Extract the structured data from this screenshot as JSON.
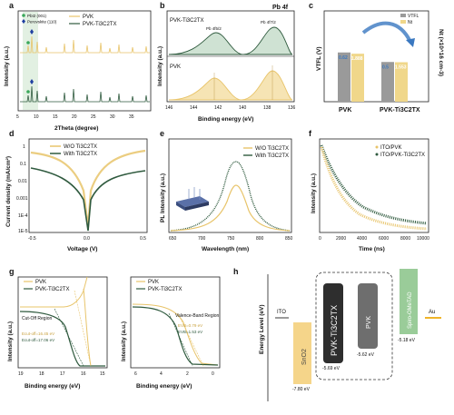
{
  "colors": {
    "pvk": "#e8c46a",
    "pvk_light": "#f0d78a",
    "green": "#2f5a3e",
    "grey": "#9a9a9a",
    "dark": "#2e2e2e",
    "blue": "#3a78c0",
    "light": "#d8d8d8"
  },
  "panels": [
    "a",
    "b",
    "c",
    "d",
    "e",
    "f",
    "g",
    "h"
  ],
  "a": {
    "xlabel": "2Theta (degree)",
    "ylabel": "Intensity (a.u.)",
    "xticks": [
      "5",
      "10",
      "15",
      "20",
      "25",
      "30",
      "35"
    ],
    "legend": [
      "PVK",
      "PVK-Ti3C2TX"
    ],
    "markers": [
      "PbI2 (001)",
      "Perovskite (110)"
    ]
  },
  "b": {
    "title": "Pb 4f",
    "xlabel": "Binding energy (eV)",
    "ylabel": "Intensity (a.u.)",
    "xticks": [
      "146",
      "144",
      "142",
      "140",
      "138",
      "136"
    ],
    "lab_top": "PVK-Ti3C2TX",
    "lab_bot": "PVK",
    "peak1": "Pb 4f5/2",
    "peak2": "Pb 4f7/2"
  },
  "c": {
    "ylabel_left": "VTFL (V)",
    "ylabel_right": "Nt (×10^16 cm-3)",
    "legend": [
      "VTFL",
      "Nt"
    ],
    "categories": [
      "PVK",
      "PVK-Ti3C2TX"
    ],
    "vtfl": [
      "0.62",
      "0.5"
    ],
    "nt": [
      "1.888",
      "1.553"
    ]
  },
  "d": {
    "xlabel": "Voltage (V)",
    "ylabel": "Current density (mA/cm²)",
    "xticks": [
      "-0.5",
      "0.0",
      "0.5"
    ],
    "yticks": [
      "1",
      "0.1",
      "0.01",
      "0.001",
      "1E-4",
      "1E-5"
    ],
    "legend": [
      "W/O Ti3C2TX",
      "With Ti3C2TX"
    ]
  },
  "e": {
    "xlabel": "Wavelength (nm)",
    "ylabel": "PL Intensity (a.u.)",
    "xticks": [
      "650",
      "700",
      "750",
      "800",
      "850"
    ],
    "legend": [
      "W/O Ti3C2TX",
      "With Ti3C2TX"
    ]
  },
  "f": {
    "xlabel": "Time (ns)",
    "ylabel": "Intensity (a.u.)",
    "xticks": [
      "0",
      "2000",
      "4000",
      "6000",
      "8000",
      "10000"
    ],
    "legend": [
      "ITO/PVK",
      "ITO/PVK-Ti3C2TX"
    ]
  },
  "g1": {
    "xlabel": "Binding energy (eV)",
    "ylabel": "Intensity (a.u.)",
    "xticks": [
      "19",
      "18",
      "17",
      "16",
      "15"
    ],
    "legend": [
      "PVK",
      "PVK-Ti3C2TX"
    ],
    "region": "Cut-Off Region",
    "e1": "Ecut-off=16.45 eV",
    "e2": "Ecut-off=17.06 eV"
  },
  "g2": {
    "xlabel": "Binding energy (eV)",
    "ylabel": "Intensity (a.u.)",
    "xticks": [
      "6",
      "4",
      "2",
      "0"
    ],
    "legend": [
      "PVK",
      "PVK-Ti3C2TX"
    ],
    "region": "Valence-Band Region",
    "e1": "EVB=0.79 eV",
    "e2": "EVB=1.53 eV"
  },
  "h": {
    "ylabel": "Energy Level (eV)",
    "ito": "ITO",
    "sno2": "SnO2",
    "pvk_ti": "PVK-Ti3C2TX",
    "pvk": "PVK",
    "spiro": "Spiro-OMeTAD",
    "au": "Au",
    "v1": "-7.80 eV",
    "v2": "-5.69 eV",
    "v3": "-5.62 eV",
    "v4": "-5.18 eV"
  }
}
